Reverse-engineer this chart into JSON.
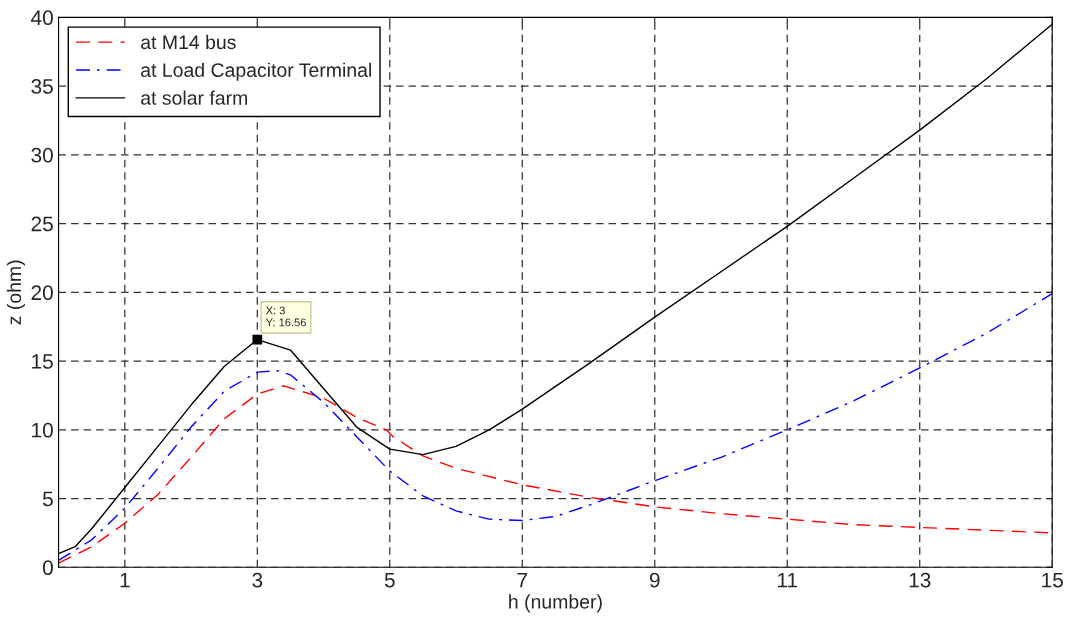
{
  "chart_data": {
    "type": "line",
    "xlabel": "h (number)",
    "ylabel": "z (ohm)",
    "xlim": [
      0,
      15
    ],
    "xticks": [
      1,
      3,
      5,
      7,
      9,
      11,
      13,
      15
    ],
    "ylim": [
      0,
      40
    ],
    "yticks": [
      0,
      5,
      10,
      15,
      20,
      25,
      30,
      35,
      40
    ],
    "grid": true,
    "legend": "top left",
    "annotations": [
      {
        "text": "X: 3\nY: 16.56",
        "x": 3,
        "y": 16.56
      }
    ],
    "series": [
      {
        "name": "at M14 bus",
        "color": "#ff0000",
        "line_style": "dashed",
        "x": [
          0,
          0.5,
          1,
          1.5,
          2,
          2.5,
          3,
          3.4,
          4,
          4.5,
          4.95,
          5.05,
          5.5,
          6,
          7,
          8,
          9,
          10,
          11,
          12,
          13,
          14,
          15
        ],
        "values": [
          0.3,
          1.5,
          3.2,
          5.3,
          8.0,
          10.8,
          12.6,
          13.2,
          12.3,
          10.9,
          10.0,
          9.5,
          8.1,
          7.2,
          6.0,
          5.1,
          4.4,
          3.9,
          3.5,
          3.1,
          2.9,
          2.7,
          2.5
        ]
      },
      {
        "name": "at Load Capacitor Terminal",
        "color": "#0000ff",
        "line_style": "dashdot",
        "x": [
          0,
          0.5,
          1,
          1.5,
          2,
          2.5,
          3,
          3.3,
          3.5,
          4,
          4.5,
          5,
          5.5,
          6,
          6.5,
          7,
          7.5,
          8,
          8.5,
          9,
          10,
          11,
          12,
          13,
          14,
          15
        ],
        "values": [
          0.5,
          2.0,
          4.3,
          7.2,
          10.2,
          12.8,
          14.2,
          14.3,
          14.0,
          12.0,
          9.5,
          7.0,
          5.2,
          4.1,
          3.5,
          3.4,
          3.7,
          4.5,
          5.4,
          6.3,
          8.0,
          10.0,
          12.1,
          14.5,
          17.0,
          19.9
        ]
      },
      {
        "name": "at solar farm",
        "color": "#000000",
        "line_style": "solid",
        "x": [
          0,
          0.25,
          0.5,
          1,
          1.5,
          2,
          2.5,
          3,
          3.5,
          4,
          4.5,
          5,
          5.5,
          6,
          6.5,
          7,
          8,
          9,
          10,
          11,
          12,
          13,
          14,
          15
        ],
        "values": [
          1.0,
          1.5,
          2.8,
          5.8,
          8.8,
          11.8,
          14.6,
          16.56,
          15.8,
          13.0,
          10.2,
          8.6,
          8.2,
          8.8,
          10.0,
          11.5,
          14.8,
          18.2,
          21.5,
          24.8,
          28.3,
          31.8,
          35.5,
          39.5
        ]
      }
    ]
  }
}
